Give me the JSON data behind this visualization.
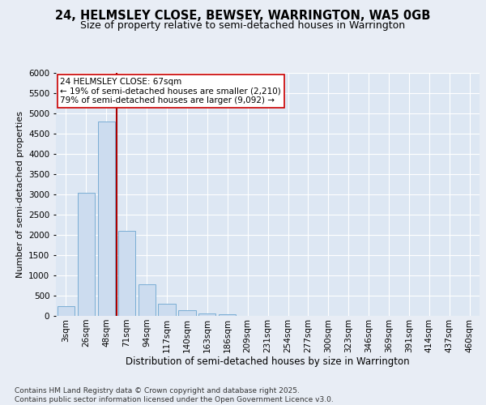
{
  "title": "24, HELMSLEY CLOSE, BEWSEY, WARRINGTON, WA5 0GB",
  "subtitle": "Size of property relative to semi-detached houses in Warrington",
  "xlabel": "Distribution of semi-detached houses by size in Warrington",
  "ylabel": "Number of semi-detached properties",
  "bar_color": "#ccdcef",
  "bar_edge_color": "#7aadd4",
  "background_color": "#e8edf5",
  "plot_bg_color": "#dde7f3",
  "grid_color": "#ffffff",
  "categories": [
    "3sqm",
    "26sqm",
    "48sqm",
    "71sqm",
    "94sqm",
    "117sqm",
    "140sqm",
    "163sqm",
    "186sqm",
    "209sqm",
    "231sqm",
    "254sqm",
    "277sqm",
    "300sqm",
    "323sqm",
    "346sqm",
    "369sqm",
    "391sqm",
    "414sqm",
    "437sqm",
    "460sqm"
  ],
  "values": [
    250,
    3050,
    4800,
    2100,
    780,
    310,
    140,
    70,
    40,
    10,
    0,
    0,
    0,
    0,
    0,
    0,
    0,
    0,
    0,
    0,
    0
  ],
  "ylim": [
    0,
    6000
  ],
  "yticks": [
    0,
    500,
    1000,
    1500,
    2000,
    2500,
    3000,
    3500,
    4000,
    4500,
    5000,
    5500,
    6000
  ],
  "property_line_color": "#aa0000",
  "annotation_text": "24 HELMSLEY CLOSE: 67sqm\n← 19% of semi-detached houses are smaller (2,210)\n79% of semi-detached houses are larger (9,092) →",
  "annotation_box_color": "#ffffff",
  "annotation_text_color": "#000000",
  "footer_text": "Contains HM Land Registry data © Crown copyright and database right 2025.\nContains public sector information licensed under the Open Government Licence v3.0.",
  "title_fontsize": 10.5,
  "subtitle_fontsize": 9,
  "xlabel_fontsize": 8.5,
  "ylabel_fontsize": 8,
  "tick_fontsize": 7.5,
  "annotation_fontsize": 7.5,
  "footer_fontsize": 6.5
}
